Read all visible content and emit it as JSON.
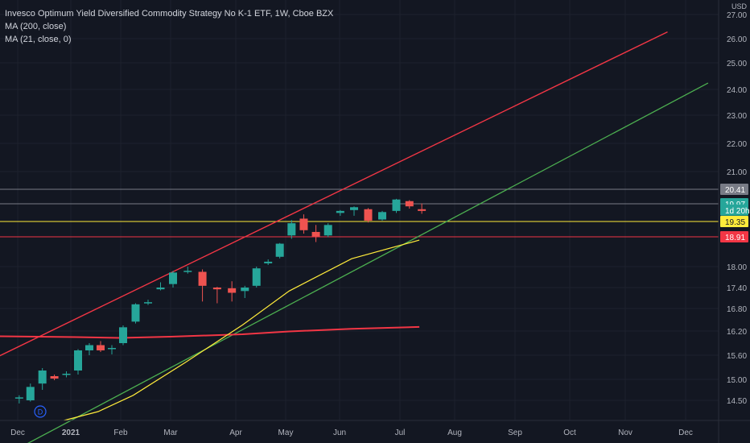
{
  "legend": {
    "title": "Invesco Optimum Yield Diversified Commodity Strategy No K-1 ETF, 1W, Cboe BZX",
    "ma1": "MA (200, close)",
    "ma2": "MA (21, close, 0)"
  },
  "price_axis": {
    "currency": "USD",
    "ticks": [
      "27.00",
      "26.00",
      "25.00",
      "24.00",
      "23.00",
      "22.00",
      "21.00",
      "18.00",
      "17.40",
      "16.80",
      "16.20",
      "15.60",
      "15.00",
      "14.50"
    ]
  },
  "time_axis": {
    "labels": [
      "Dec",
      "2021",
      "Feb",
      "Mar",
      "Apr",
      "May",
      "Jun",
      "Jul",
      "Aug",
      "Sep",
      "Oct",
      "Nov",
      "Dec"
    ]
  },
  "markers": {
    "dividend": "D"
  },
  "price_labels": [
    {
      "text": "20.41",
      "color": "#787b86",
      "price": 20.41
    },
    {
      "text": "19.97",
      "color": "#26a69a",
      "price": 19.97
    },
    {
      "text": "1d 20h",
      "color": "#26a69a",
      "price": 19.75
    },
    {
      "text": "19.35",
      "color": "#ffeb3b",
      "price": 19.35
    },
    {
      "text": "18.91",
      "color": "#f23645",
      "price": 18.91
    }
  ],
  "colors": {
    "up": "#26a69a",
    "down": "#ef5350",
    "background": "#131722",
    "channel_upper": "#f23645",
    "channel_lower": "#4caf50",
    "ma_long": "#f23645",
    "ma_short": "#ffeb3b"
  },
  "chart_data": {
    "type": "candlestick",
    "candles": [
      {
        "date": "2020-11-30",
        "open": 14.55,
        "high": 14.62,
        "low": 14.45,
        "close": 14.57
      },
      {
        "date": "2020-12-07",
        "open": 14.5,
        "high": 14.9,
        "low": 14.48,
        "close": 14.82
      },
      {
        "date": "2020-12-14",
        "open": 14.9,
        "high": 15.28,
        "low": 14.75,
        "close": 15.22
      },
      {
        "date": "2020-12-21",
        "open": 15.08,
        "high": 15.12,
        "low": 14.98,
        "close": 15.02
      },
      {
        "date": "2020-12-28",
        "open": 15.12,
        "high": 15.2,
        "low": 15.05,
        "close": 15.14
      },
      {
        "date": "2021-01-04",
        "open": 15.22,
        "high": 15.75,
        "low": 15.12,
        "close": 15.72
      },
      {
        "date": "2021-01-11",
        "open": 15.72,
        "high": 15.9,
        "low": 15.6,
        "close": 15.85
      },
      {
        "date": "2021-01-18",
        "open": 15.85,
        "high": 15.95,
        "low": 15.68,
        "close": 15.72
      },
      {
        "date": "2021-01-25",
        "open": 15.75,
        "high": 15.85,
        "low": 15.62,
        "close": 15.78
      },
      {
        "date": "2021-02-01",
        "open": 15.9,
        "high": 16.35,
        "low": 15.85,
        "close": 16.3
      },
      {
        "date": "2021-02-08",
        "open": 16.45,
        "high": 16.95,
        "low": 16.4,
        "close": 16.92
      },
      {
        "date": "2021-02-15",
        "open": 16.95,
        "high": 17.05,
        "low": 16.9,
        "close": 16.98
      },
      {
        "date": "2021-02-22",
        "open": 17.35,
        "high": 17.55,
        "low": 17.32,
        "close": 17.4
      },
      {
        "date": "2021-03-01",
        "open": 17.5,
        "high": 17.88,
        "low": 17.4,
        "close": 17.83
      },
      {
        "date": "2021-03-08",
        "open": 17.85,
        "high": 18.0,
        "low": 17.8,
        "close": 17.88
      },
      {
        "date": "2021-03-15",
        "open": 17.85,
        "high": 17.92,
        "low": 17.0,
        "close": 17.45
      },
      {
        "date": "2021-03-22",
        "open": 17.4,
        "high": 17.42,
        "low": 16.95,
        "close": 17.35
      },
      {
        "date": "2021-03-29",
        "open": 17.38,
        "high": 17.58,
        "low": 17.0,
        "close": 17.25
      },
      {
        "date": "2021-04-05",
        "open": 17.3,
        "high": 17.45,
        "low": 17.1,
        "close": 17.4
      },
      {
        "date": "2021-04-12",
        "open": 17.45,
        "high": 18.0,
        "low": 17.4,
        "close": 17.95
      },
      {
        "date": "2021-04-19",
        "open": 18.1,
        "high": 18.22,
        "low": 18.05,
        "close": 18.15
      },
      {
        "date": "2021-04-26",
        "open": 18.3,
        "high": 18.72,
        "low": 18.25,
        "close": 18.7
      },
      {
        "date": "2021-05-03",
        "open": 18.95,
        "high": 19.4,
        "low": 18.85,
        "close": 19.3
      },
      {
        "date": "2021-05-10",
        "open": 19.45,
        "high": 19.6,
        "low": 19.0,
        "close": 19.1
      },
      {
        "date": "2021-05-17",
        "open": 19.05,
        "high": 19.25,
        "low": 18.75,
        "close": 18.92
      },
      {
        "date": "2021-05-24",
        "open": 18.95,
        "high": 19.3,
        "low": 18.9,
        "close": 19.25
      },
      {
        "date": "2021-05-31",
        "open": 19.65,
        "high": 19.75,
        "low": 19.55,
        "close": 19.72
      },
      {
        "date": "2021-06-07",
        "open": 19.75,
        "high": 19.88,
        "low": 19.55,
        "close": 19.85
      },
      {
        "date": "2021-06-14",
        "open": 19.78,
        "high": 19.82,
        "low": 19.32,
        "close": 19.38
      },
      {
        "date": "2021-06-21",
        "open": 19.42,
        "high": 19.72,
        "low": 19.38,
        "close": 19.68
      },
      {
        "date": "2021-06-28",
        "open": 19.72,
        "high": 20.12,
        "low": 19.65,
        "close": 20.1
      },
      {
        "date": "2021-07-05",
        "open": 20.05,
        "high": 20.08,
        "low": 19.8,
        "close": 19.88
      },
      {
        "date": "2021-07-12",
        "open": 19.78,
        "high": 19.98,
        "low": 19.62,
        "close": 19.72
      }
    ],
    "ma_200": [
      {
        "date": "2020-11-09",
        "value": 16.07
      },
      {
        "date": "2021-01-04",
        "value": 16.05
      },
      {
        "date": "2021-02-01",
        "value": 16.03
      },
      {
        "date": "2021-03-01",
        "value": 16.06
      },
      {
        "date": "2021-04-05",
        "value": 16.12
      },
      {
        "date": "2021-05-03",
        "value": 16.19
      },
      {
        "date": "2021-06-07",
        "value": 16.26
      },
      {
        "date": "2021-07-12",
        "value": 16.31
      }
    ],
    "ma_21": [
      {
        "date": "2020-12-28",
        "value": 14.18
      },
      {
        "date": "2021-01-18",
        "value": 14.32
      },
      {
        "date": "2021-02-08",
        "value": 14.62
      },
      {
        "date": "2021-03-08",
        "value": 15.42
      },
      {
        "date": "2021-04-05",
        "value": 16.36
      },
      {
        "date": "2021-05-03",
        "value": 17.3
      },
      {
        "date": "2021-06-07",
        "value": 18.24
      },
      {
        "date": "2021-07-12",
        "value": 18.81
      }
    ],
    "channel_upper": [
      {
        "date": "2020-11-09",
        "value": 15.56
      },
      {
        "date": "2021-11-22",
        "value": 26.28
      }
    ],
    "channel_lower": [
      {
        "date": "2020-11-09",
        "value": 13.56
      },
      {
        "date": "2021-12-13",
        "value": 24.24
      }
    ],
    "horizontal_lines": [
      {
        "value": 20.41,
        "color": "#787b86"
      },
      {
        "value": 19.97,
        "color": "#787b86"
      },
      {
        "value": 19.35,
        "color": "#ffeb3b"
      },
      {
        "value": 18.91,
        "color": "#f23645"
      }
    ],
    "x_range": [
      "2020-11-09",
      "2022-01-10"
    ],
    "grid": true
  }
}
